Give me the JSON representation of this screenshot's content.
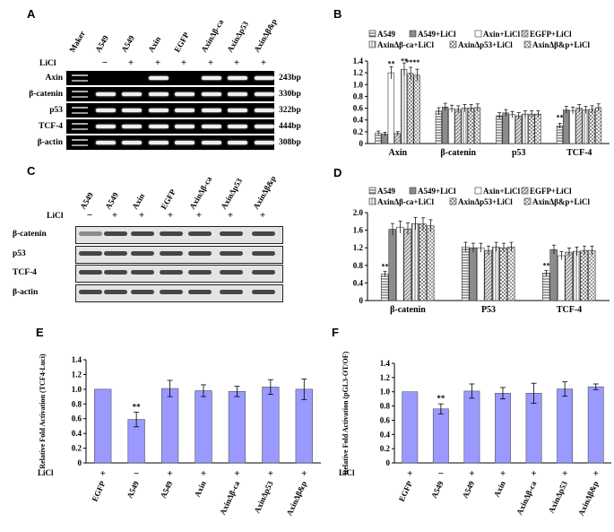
{
  "colors": {
    "bar": "#9999ff",
    "gel_bg": "#000000",
    "wb_bg": "#e6e6e6",
    "band": "#e8e8e8",
    "wb_band": "#333333"
  },
  "panels": {
    "a": "A",
    "b": "B",
    "c": "C",
    "d": "D",
    "e": "E",
    "f": "F"
  },
  "panel_a": {
    "lanes": [
      "Maker",
      "A549",
      "A549",
      "Axin",
      "EGFP",
      "AxinΔβ-ca",
      "AxinΔp53",
      "AxinΔβ&p"
    ],
    "licl_label": "LiCl",
    "licl_signs": [
      "−",
      "+",
      "+",
      "+",
      "+",
      "+",
      "+"
    ],
    "rows": [
      {
        "label": "Axin",
        "bp": "243bp",
        "bands": [
          0,
          0,
          1,
          0,
          1,
          1,
          1
        ]
      },
      {
        "label": "β-catenin",
        "bp": "330bp",
        "bands": [
          1,
          1,
          1,
          1,
          1,
          1,
          1
        ]
      },
      {
        "label": "p53",
        "bp": "322bp",
        "bands": [
          1,
          1,
          1,
          1,
          1,
          1,
          1
        ]
      },
      {
        "label": "TCF-4",
        "bp": "444bp",
        "bands": [
          1,
          1,
          1,
          1,
          1,
          1,
          1
        ]
      },
      {
        "label": "β-actin",
        "bp": "308bp",
        "bands": [
          1,
          1,
          1,
          1,
          1,
          1,
          1
        ]
      }
    ]
  },
  "panel_c": {
    "lanes": [
      "A549",
      "A549",
      "Axin",
      "EGFP",
      "AxinΔβ-ca",
      "AxinΔp53",
      "AxinΔβ&p"
    ],
    "licl_label": "LiCl",
    "licl_signs": [
      "−",
      "+",
      "+",
      "+",
      "+",
      "+",
      "+"
    ],
    "rows": [
      "β-catenin",
      "p53",
      "TCF-4",
      "β-actin"
    ]
  },
  "chart_data": [
    {
      "id": "B",
      "type": "bar",
      "legend": [
        "A549",
        "A549+LiCl",
        "Axin+LiCl",
        "EGFP+LiCl",
        "AxinΔβ-ca+LiCl",
        "AxinΔp53+LiCl",
        "AxinΔβ&p+LiCl"
      ],
      "categories": [
        "Axin",
        "β-catenin",
        "p53",
        "TCF-4"
      ],
      "ylim": [
        0,
        1.4
      ],
      "yticks": [
        "0",
        "0.2",
        "0.4",
        "0.6",
        "0.8",
        "1.0",
        "1.2",
        "1.4"
      ],
      "series": [
        {
          "name": "A549",
          "values": [
            0.18,
            0.55,
            0.47,
            0.3
          ]
        },
        {
          "name": "A549+LiCl",
          "values": [
            0.16,
            0.62,
            0.52,
            0.57
          ]
        },
        {
          "name": "Axin+LiCl",
          "values": [
            1.2,
            0.59,
            0.49,
            0.56
          ]
        },
        {
          "name": "EGFP+LiCl",
          "values": [
            0.17,
            0.58,
            0.47,
            0.6
          ]
        },
        {
          "name": "AxinΔβ-ca+LiCl",
          "values": [
            1.26,
            0.6,
            0.5,
            0.57
          ]
        },
        {
          "name": "AxinΔp53+LiCl",
          "values": [
            1.19,
            0.6,
            0.5,
            0.58
          ]
        },
        {
          "name": "AxinΔβ&p+LiCl",
          "values": [
            1.16,
            0.61,
            0.5,
            0.61
          ]
        }
      ],
      "annotations": [
        "**",
        "**",
        "****",
        "**"
      ]
    },
    {
      "id": "D",
      "type": "bar",
      "legend": [
        "A549",
        "A549+LiCl",
        "Axin+LiCl",
        "EGFP+LiCl",
        "AxinΔβ-ca+LiCl",
        "AxinΔp53+LiCl",
        "AxinΔβ&p+LiCl"
      ],
      "categories": [
        "β-catenin",
        "P53",
        "TCF-4"
      ],
      "ylim": [
        0,
        2.0
      ],
      "yticks": [
        "0",
        "0.4",
        "0.8",
        "1.2",
        "1.6",
        "2.0"
      ],
      "series": [
        {
          "name": "A549",
          "values": [
            0.6,
            1.22,
            0.62
          ]
        },
        {
          "name": "A549+LiCl",
          "values": [
            1.62,
            1.2,
            1.16
          ]
        },
        {
          "name": "Axin+LiCl",
          "values": [
            1.67,
            1.2,
            1.02
          ]
        },
        {
          "name": "EGFP+LiCl",
          "values": [
            1.63,
            1.14,
            1.1
          ]
        },
        {
          "name": "AxinΔβ-ca+LiCl",
          "values": [
            1.75,
            1.22,
            1.12
          ]
        },
        {
          "name": "AxinΔp53+LiCl",
          "values": [
            1.74,
            1.2,
            1.14
          ]
        },
        {
          "name": "AxinΔβ&p+LiCl",
          "values": [
            1.7,
            1.22,
            1.14
          ]
        }
      ],
      "annotations": [
        "**",
        "**"
      ]
    },
    {
      "id": "E",
      "type": "bar",
      "ylabel": "Relative Fold Activation (TCF4-Luci)",
      "categories": [
        "EGFP",
        "A549",
        "A549",
        "Axin",
        "AxinΔβ-ca",
        "AxinΔp53",
        "AxinΔβ&p"
      ],
      "licl_label": "LiCl",
      "licl_signs": [
        "+",
        "−",
        "+",
        "+",
        "+",
        "+",
        "+"
      ],
      "values": [
        1.0,
        0.59,
        1.01,
        0.98,
        0.97,
        1.03,
        1.0
      ],
      "errors": [
        0,
        0.1,
        0.11,
        0.08,
        0.07,
        0.1,
        0.14
      ],
      "ylim": [
        0,
        1.4
      ],
      "yticks": [
        "0",
        "0.2",
        "0.4",
        "0.6",
        "0.8",
        "1.0",
        "1.2",
        "1.4"
      ],
      "annotation": "**"
    },
    {
      "id": "F",
      "type": "bar",
      "ylabel": "Relative Fold Activation (pGL3-OT/OF)",
      "categories": [
        "EGFP",
        "A549",
        "A549",
        "Axin",
        "AxinΔβ-ca",
        "AxinΔp53",
        "AxinΔβ&p"
      ],
      "licl_label": "LiCl",
      "licl_signs": [
        "+",
        "−",
        "+",
        "+",
        "+",
        "+",
        "+"
      ],
      "values": [
        1.0,
        0.76,
        1.01,
        0.98,
        0.98,
        1.04,
        1.07
      ],
      "errors": [
        0,
        0.07,
        0.1,
        0.08,
        0.14,
        0.1,
        0.04
      ],
      "ylim": [
        0,
        1.4
      ],
      "yticks": [
        "0",
        "0.2",
        "0.4",
        "0.6",
        "0.8",
        "1.0",
        "1.2",
        "1.4"
      ],
      "annotation": "**"
    }
  ]
}
